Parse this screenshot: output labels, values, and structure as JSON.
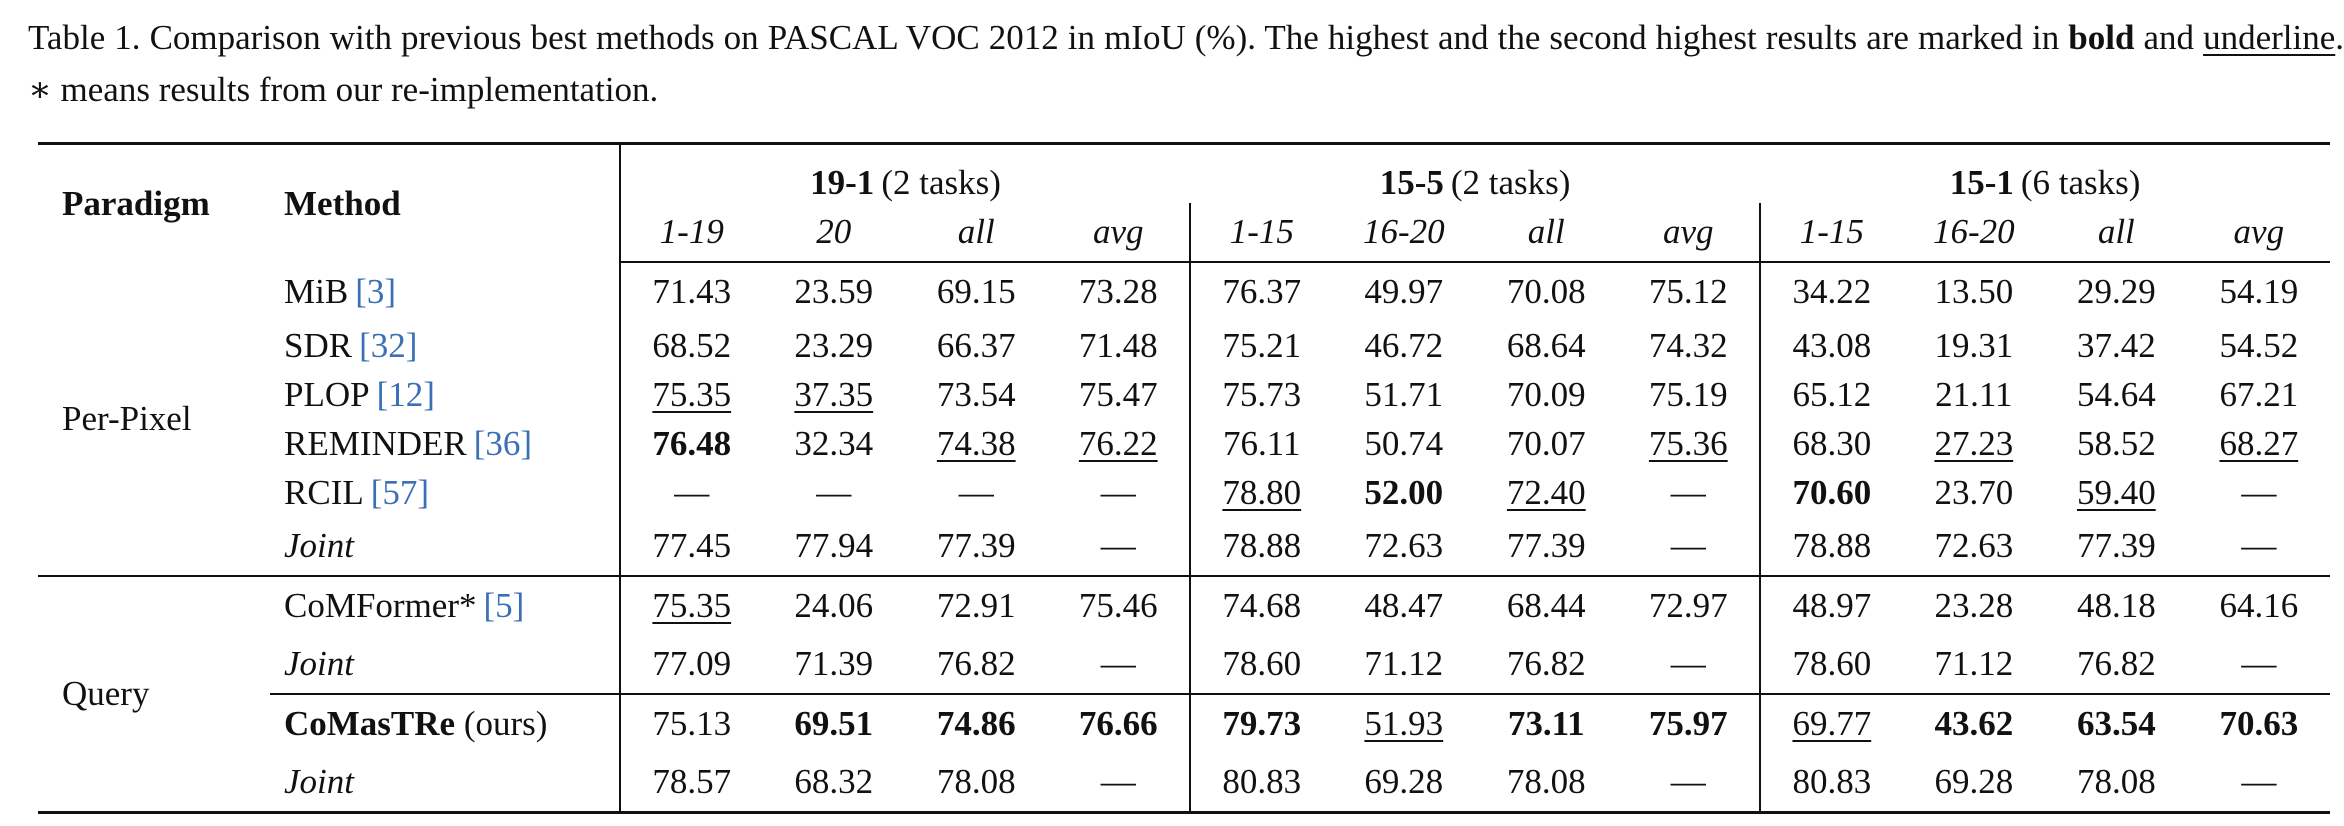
{
  "caption": {
    "parts": [
      "Table 1.  Comparison with previous best methods on PASCAL VOC 2012 in mIoU (%).  The highest and the second highest results are marked in ",
      "bold",
      " and ",
      "underline",
      ".  ∗ means results from our re-implementation."
    ]
  },
  "table": {
    "header": {
      "paradigm": "Paradigm",
      "method": "Method",
      "groups": [
        {
          "name": "19-1",
          "tasks": "(2 tasks)",
          "columns": [
            "1-19",
            "20",
            "all",
            "avg"
          ]
        },
        {
          "name": "15-5",
          "tasks": "(2 tasks)",
          "columns": [
            "1-15",
            "16-20",
            "all",
            "avg"
          ]
        },
        {
          "name": "15-1",
          "tasks": "(6 tasks)",
          "columns": [
            "1-15",
            "16-20",
            "all",
            "avg"
          ]
        }
      ]
    },
    "paradigms": [
      {
        "name": "Per-Pixel",
        "blocks": [
          [
            {
              "method": "MiB",
              "cite": "[3]",
              "values": [
                "71.43",
                "23.59",
                "69.15",
                "73.28",
                "76.37",
                "49.97",
                "70.08",
                "75.12",
                "34.22",
                "13.50",
                "29.29",
                "54.19"
              ]
            },
            {
              "method": "SDR",
              "cite": "[32]",
              "values": [
                "68.52",
                "23.29",
                "66.37",
                "71.48",
                "75.21",
                "46.72",
                "68.64",
                "74.32",
                "43.08",
                "19.31",
                "37.42",
                "54.52"
              ]
            },
            {
              "method": "PLOP",
              "cite": "[12]",
              "values": [
                "75.35",
                "37.35",
                "73.54",
                "75.47",
                "75.73",
                "51.71",
                "70.09",
                "75.19",
                "65.12",
                "21.11",
                "54.64",
                "67.21"
              ],
              "underline": [
                0,
                1
              ]
            },
            {
              "method": "REMINDER",
              "cite": "[36]",
              "values": [
                "76.48",
                "32.34",
                "74.38",
                "76.22",
                "76.11",
                "50.74",
                "70.07",
                "75.36",
                "68.30",
                "27.23",
                "58.52",
                "68.27"
              ],
              "bold": [
                0
              ],
              "underline": [
                2,
                3,
                7,
                9,
                11
              ]
            },
            {
              "method": "RCIL",
              "cite": "[57]",
              "values": [
                "—",
                "—",
                "—",
                "—",
                "78.80",
                "52.00",
                "72.40",
                "—",
                "70.60",
                "23.70",
                "59.40",
                "—"
              ],
              "bold": [
                5,
                8
              ],
              "underline": [
                4,
                6,
                10
              ]
            },
            {
              "method": "Joint",
              "italic": true,
              "values": [
                "77.45",
                "77.94",
                "77.39",
                "—",
                "78.88",
                "72.63",
                "77.39",
                "—",
                "78.88",
                "72.63",
                "77.39",
                "—"
              ]
            }
          ]
        ]
      },
      {
        "name": "Query",
        "blocks": [
          [
            {
              "method": "CoMFormer*",
              "cite": "[5]",
              "values": [
                "75.35",
                "24.06",
                "72.91",
                "75.46",
                "74.68",
                "48.47",
                "68.44",
                "72.97",
                "48.97",
                "23.28",
                "48.18",
                "64.16"
              ],
              "underline": [
                0
              ]
            },
            {
              "method": "Joint",
              "italic": true,
              "values": [
                "77.09",
                "71.39",
                "76.82",
                "—",
                "78.60",
                "71.12",
                "76.82",
                "—",
                "78.60",
                "71.12",
                "76.82",
                "—"
              ]
            }
          ],
          [
            {
              "method": "CoMasTRe",
              "suffix": "(ours)",
              "method_bold": true,
              "values": [
                "75.13",
                "69.51",
                "74.86",
                "76.66",
                "79.73",
                "51.93",
                "73.11",
                "75.97",
                "69.77",
                "43.62",
                "63.54",
                "70.63"
              ],
              "bold": [
                1,
                2,
                3,
                4,
                6,
                7,
                9,
                10,
                11
              ],
              "underline": [
                5,
                8
              ]
            },
            {
              "method": "Joint",
              "italic": true,
              "values": [
                "78.57",
                "68.32",
                "78.08",
                "—",
                "80.83",
                "69.28",
                "78.08",
                "—",
                "80.83",
                "69.28",
                "78.08",
                "—"
              ]
            }
          ]
        ]
      }
    ]
  }
}
